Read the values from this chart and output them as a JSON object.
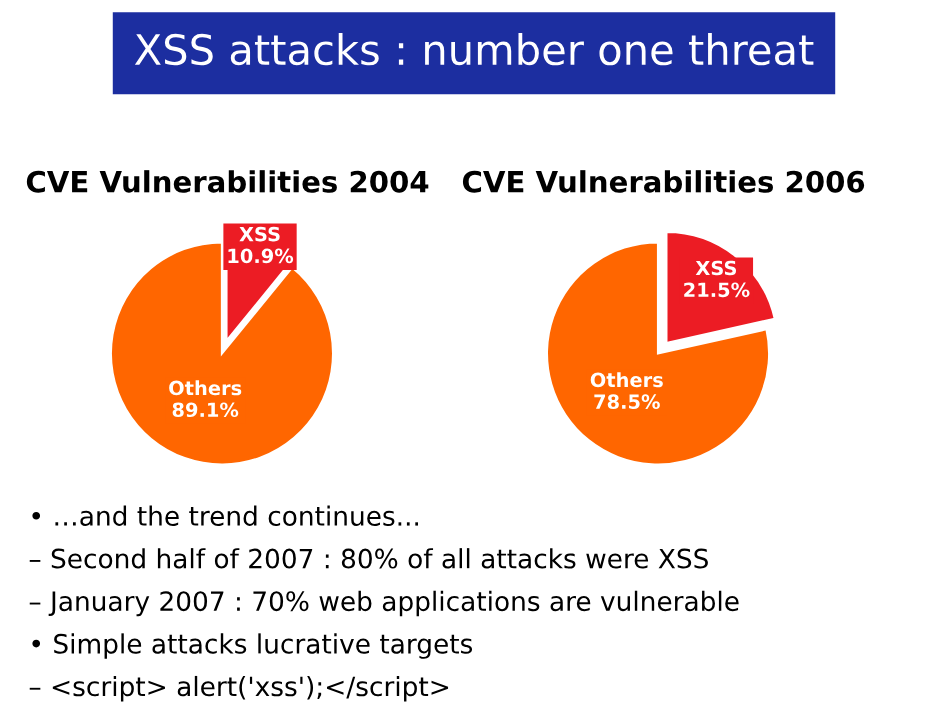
{
  "chart_data": [
    {
      "type": "pie",
      "title": "CVE Vulnerabilities 2004",
      "categories": [
        "XSS",
        "Others"
      ],
      "values": [
        10.9,
        89.1
      ],
      "value_labels": [
        "10.9%",
        "89.1%"
      ],
      "colors": [
        "#ec1c24",
        "#ff6600"
      ]
    },
    {
      "type": "pie",
      "title": "CVE Vulnerabilities 2006",
      "categories": [
        "XSS",
        "Others"
      ],
      "values": [
        21.5,
        78.5
      ],
      "value_labels": [
        "21.5%",
        "78.5%"
      ],
      "colors": [
        "#ec1c24",
        "#ff6600"
      ]
    },
    {
      "type": "other",
      "title": "XSS attacks : number one threat",
      "annotations": [
        "• …and the trend continues...",
        "– Second half of 2007 : 80% of all attacks were XSS",
        "– January 2007 : 70% web applications are vulnerable",
        "• Simple attacks lucrative targets",
        "– <script> alert('xss');</script>"
      ]
    }
  ]
}
